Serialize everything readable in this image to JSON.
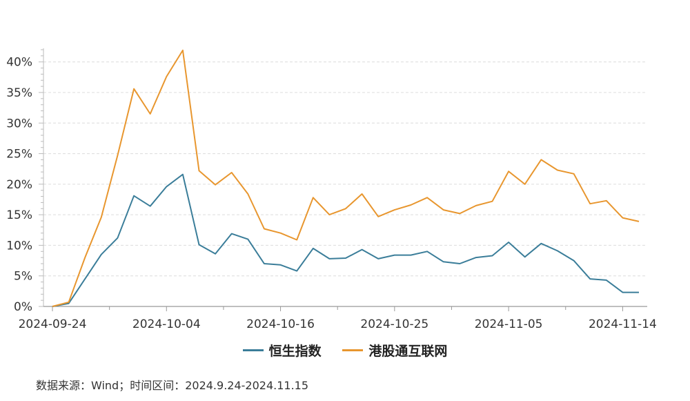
{
  "chart_data": {
    "type": "line",
    "title": "",
    "xlabel": "",
    "ylabel": "",
    "ylim": [
      0,
      42
    ],
    "yticks": [
      0,
      5,
      10,
      15,
      20,
      25,
      30,
      35,
      40
    ],
    "ytick_labels": [
      "0%",
      "5%",
      "10%",
      "15%",
      "20%",
      "25%",
      "30%",
      "35%",
      "40%"
    ],
    "x_tick_labels": [
      {
        "index": 0,
        "label": "2024-09-24"
      },
      {
        "index": 7,
        "label": "2024-10-04"
      },
      {
        "index": 14,
        "label": "2024-10-16"
      },
      {
        "index": 21,
        "label": "2024-10-25"
      },
      {
        "index": 28,
        "label": "2024-11-05"
      },
      {
        "index": 35,
        "label": "2024-11-14"
      }
    ],
    "series": [
      {
        "name": "恒生指数",
        "color": "#3a7d99",
        "values": [
          0,
          0.5,
          4.5,
          8.5,
          11.2,
          18.1,
          16.4,
          19.6,
          21.6,
          10.1,
          8.6,
          11.9,
          11.0,
          7.0,
          6.8,
          5.8,
          9.5,
          7.8,
          7.9,
          9.3,
          7.8,
          8.4,
          8.4,
          9.0,
          7.3,
          7.0,
          8.0,
          8.3,
          10.5,
          8.1,
          10.3,
          9.1,
          7.5,
          4.5,
          4.3,
          2.3,
          2.3
        ]
      },
      {
        "name": "港股通互联网",
        "color": "#e8962e",
        "values": [
          0,
          0.7,
          8.0,
          14.6,
          24.7,
          35.6,
          31.5,
          37.6,
          41.9,
          22.2,
          19.9,
          21.9,
          18.4,
          12.7,
          12.0,
          10.9,
          17.8,
          15.0,
          16.0,
          18.4,
          14.7,
          15.8,
          16.6,
          17.8,
          15.8,
          15.2,
          16.5,
          17.2,
          22.1,
          20.0,
          24.0,
          22.3,
          21.7,
          16.8,
          17.3,
          14.5,
          13.9
        ]
      }
    ]
  },
  "legend": {
    "items": [
      {
        "label": "恒生指数",
        "color": "#3a7d99"
      },
      {
        "label": "港股通互联网",
        "color": "#e8962e"
      }
    ]
  },
  "source": {
    "text": "数据来源：Wind；时间区间：2024.9.24-2024.11.15"
  }
}
